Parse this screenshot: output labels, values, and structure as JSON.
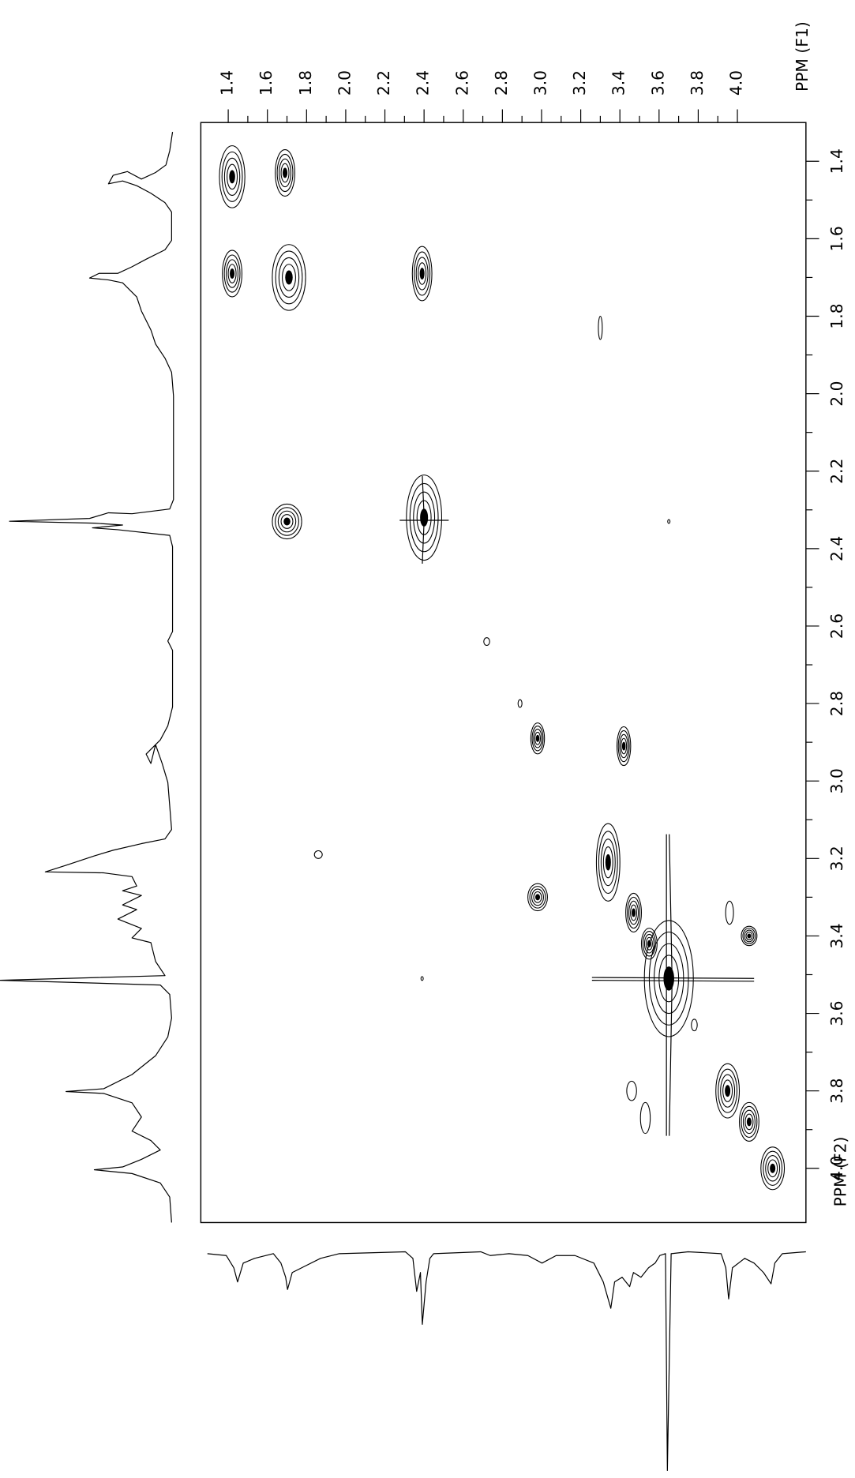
{
  "chart_data": {
    "type": "contour",
    "x_label": "PPM (F1)",
    "y_label": "PPM (F2)",
    "xlim": [
      1.26,
      4.35
    ],
    "ylim": [
      1.3,
      4.14
    ],
    "xticks": [
      1.4,
      1.6,
      1.8,
      {
        "value": 2,
        "label": "2.0"
      },
      2.2,
      2.4,
      2.6,
      2.8,
      {
        "value": 3,
        "label": "3.0"
      },
      3.2,
      3.4,
      3.6,
      3.8,
      {
        "value": 4,
        "label": "4.0"
      }
    ],
    "yticks": [
      1.4,
      1.6,
      1.8,
      {
        "value": 2,
        "label": "2.0"
      },
      2.2,
      2.4,
      2.6,
      2.8,
      {
        "value": 3,
        "label": "3.0"
      },
      3.2,
      3.4,
      3.6,
      3.8,
      {
        "value": 4,
        "label": "4.0"
      }
    ],
    "series": [
      {
        "color": "#000000",
        "x": [
          1.42,
          1.69,
          1.42,
          1.71,
          2.39,
          3.3,
          1.7,
          2.4,
          3.65,
          2.72,
          2.89,
          2.98,
          3.42,
          1.86,
          2.98,
          3.34,
          3.47,
          3.55,
          3.65,
          2.39,
          3.96,
          4.06,
          3.78,
          3.46,
          3.53,
          3.95,
          4.06,
          4.18
        ],
        "values": [
          1.44,
          1.43,
          1.69,
          1.7,
          1.69,
          1.83,
          2.33,
          2.32,
          2.33,
          2.64,
          2.8,
          2.89,
          2.91,
          3.19,
          3.3,
          3.21,
          3.34,
          3.42,
          3.51,
          3.51,
          3.34,
          3.4,
          3.63,
          3.8,
          3.87,
          3.8,
          3.88,
          4.0
        ],
        "x_widths": [
          0.13,
          0.1,
          0.1,
          0.17,
          0.1,
          0.02,
          0.15,
          0.18,
          0.01,
          0.03,
          0.02,
          0.07,
          0.07,
          0.04,
          0.1,
          0.12,
          0.08,
          0.08,
          0.25,
          0.01,
          0.04,
          0.08,
          0.03,
          0.05,
          0.05,
          0.12,
          0.1,
          0.12
        ],
        "y_widths": [
          0.16,
          0.12,
          0.12,
          0.17,
          0.14,
          0.06,
          0.09,
          0.22,
          0.01,
          0.02,
          0.02,
          0.08,
          0.1,
          0.02,
          0.07,
          0.2,
          0.1,
          0.08,
          0.3,
          0.01,
          0.06,
          0.05,
          0.03,
          0.05,
          0.08,
          0.14,
          0.1,
          0.11
        ]
      }
    ]
  }
}
